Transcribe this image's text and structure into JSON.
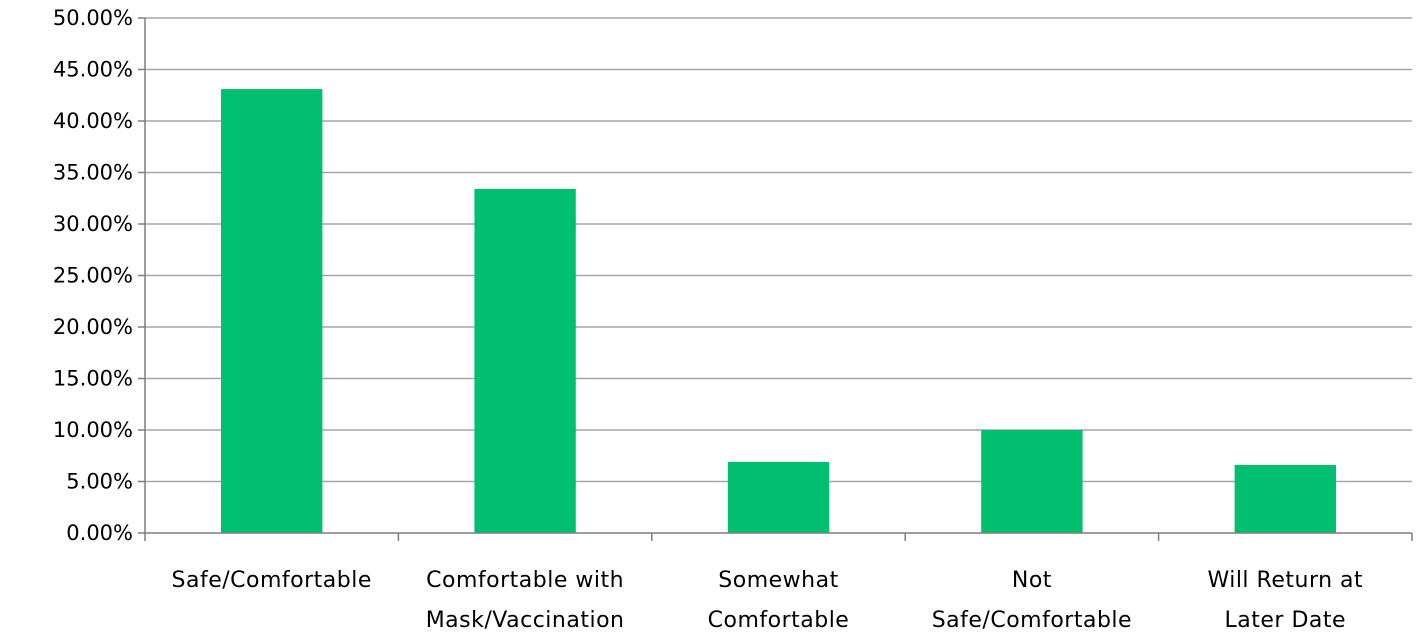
{
  "chart_data": {
    "type": "bar",
    "title": "",
    "xlabel": "",
    "ylabel": "",
    "categories": [
      [
        "Safe/Comfortable"
      ],
      [
        "Comfortable with",
        "Mask/Vaccination"
      ],
      [
        "Somewhat",
        "Comfortable"
      ],
      [
        "Not",
        "Safe/Comfortable"
      ],
      [
        "Will Return at",
        "Later Date"
      ]
    ],
    "values": [
      43.1,
      33.4,
      6.9,
      10.0,
      6.6
    ],
    "ylim": [
      0,
      50
    ],
    "y_ticks": [
      "0.00%",
      "5.00%",
      "10.00%",
      "15.00%",
      "20.00%",
      "25.00%",
      "30.00%",
      "35.00%",
      "40.00%",
      "45.00%",
      "50.00%"
    ],
    "y_tick_values": [
      0,
      5,
      10,
      15,
      20,
      25,
      30,
      35,
      40,
      45,
      50
    ],
    "y_unit": "percent",
    "grid": true,
    "legend": "none",
    "colors": {
      "bar": "#00bf6f"
    }
  }
}
